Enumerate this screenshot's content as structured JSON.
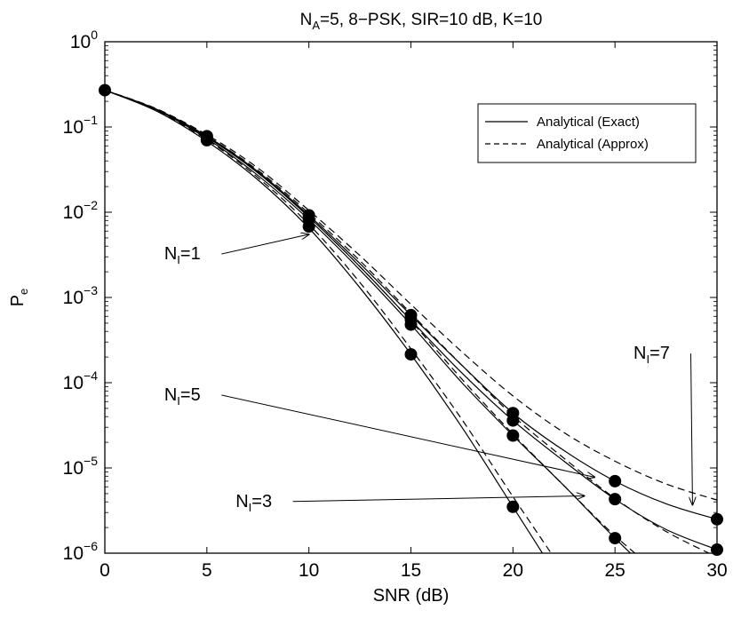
{
  "chart_data": {
    "type": "line",
    "title": {
      "prefix": "N",
      "sub": "A",
      "rest": "=5, 8−PSK, SIR=10 dB, K=10"
    },
    "xlabel": "SNR (dB)",
    "ylabel": {
      "main": "P",
      "sub": "e"
    },
    "xlim": [
      0,
      30
    ],
    "ylim": [
      1e-06,
      1
    ],
    "yscale": "log",
    "grid": false,
    "xticks": [
      0,
      5,
      10,
      15,
      20,
      25,
      30
    ],
    "yticks": [
      {
        "value": 1,
        "base": "10",
        "exp": "0"
      },
      {
        "value": 0.1,
        "base": "10",
        "exp": "−1"
      },
      {
        "value": 0.01,
        "base": "10",
        "exp": "−2"
      },
      {
        "value": 0.001,
        "base": "10",
        "exp": "−3"
      },
      {
        "value": 0.0001,
        "base": "10",
        "exp": "−4"
      },
      {
        "value": 1e-05,
        "base": "10",
        "exp": "−5"
      },
      {
        "value": 1e-06,
        "base": "10",
        "exp": "−6"
      }
    ],
    "legend": {
      "position": "top-right",
      "entries": [
        {
          "label": "Analytical (Exact)",
          "style": "solid"
        },
        {
          "label": "Analytical (Approx)",
          "style": "dashed"
        }
      ]
    },
    "x": [
      0,
      2.5,
      5,
      7.5,
      10,
      12.5,
      15,
      17.5,
      20,
      22.5,
      25,
      27.5,
      30
    ],
    "series": [
      {
        "key": "NI=1",
        "style": "solid",
        "values": [
          0.27,
          0.155,
          0.068,
          0.024,
          0.0065,
          0.0013,
          0.000215,
          3e-05,
          3.5e-06,
          4e-07,
          null,
          null,
          null
        ]
      },
      {
        "key": "NI=1",
        "style": "dashed",
        "values": [
          0.27,
          0.157,
          0.071,
          0.0255,
          0.0072,
          0.0015,
          0.00025,
          3.7e-05,
          4.6e-06,
          6e-07,
          null,
          null,
          null
        ]
      },
      {
        "key": "NI=3",
        "style": "solid",
        "values": [
          0.27,
          0.16,
          0.073,
          0.027,
          0.0082,
          0.0021,
          0.00048,
          0.0001,
          2.4e-05,
          6.2e-06,
          1.5e-06,
          4e-07,
          null
        ]
      },
      {
        "key": "NI=3",
        "style": "dashed",
        "values": [
          0.27,
          0.162,
          0.076,
          0.029,
          0.0088,
          0.0023,
          0.00053,
          0.00011,
          2.5e-05,
          6.2e-06,
          1.6e-06,
          5e-07,
          null
        ]
      },
      {
        "key": "NI=5",
        "style": "solid",
        "values": [
          0.27,
          0.162,
          0.076,
          0.029,
          0.0088,
          0.0023,
          0.00054,
          0.00013,
          3.6e-05,
          1.2e-05,
          4.3e-06,
          1.9e-06,
          1.1e-06
        ]
      },
      {
        "key": "NI=5",
        "style": "dashed",
        "values": [
          0.27,
          0.163,
          0.078,
          0.031,
          0.0097,
          0.0027,
          0.00065,
          0.00016,
          4.1e-05,
          1.3e-05,
          4.4e-06,
          1.8e-06,
          9e-07
        ]
      },
      {
        "key": "NI=7",
        "style": "solid",
        "values": [
          0.27,
          0.163,
          0.078,
          0.03,
          0.0092,
          0.0025,
          0.00062,
          0.00016,
          4.4e-05,
          1.6e-05,
          7e-06,
          3.8e-06,
          2.5e-06
        ]
      },
      {
        "key": "NI=7",
        "style": "dashed",
        "values": [
          0.27,
          0.165,
          0.081,
          0.033,
          0.0105,
          0.0031,
          0.00083,
          0.00023,
          7e-05,
          2.6e-05,
          1.2e-05,
          6.5e-06,
          4.2e-06
        ]
      }
    ],
    "markers": [
      {
        "x": 0,
        "y": 0.27
      },
      {
        "x": 5,
        "y": 0.078
      },
      {
        "x": 5,
        "y": 0.075
      },
      {
        "x": 5,
        "y": 0.07
      },
      {
        "x": 10,
        "y": 0.0092
      },
      {
        "x": 10,
        "y": 0.0082
      },
      {
        "x": 10,
        "y": 0.0068
      },
      {
        "x": 15,
        "y": 0.00062
      },
      {
        "x": 15,
        "y": 0.00055
      },
      {
        "x": 15,
        "y": 0.00048
      },
      {
        "x": 15,
        "y": 0.000215
      },
      {
        "x": 20,
        "y": 4.4e-05
      },
      {
        "x": 20,
        "y": 3.6e-05
      },
      {
        "x": 20,
        "y": 2.4e-05
      },
      {
        "x": 20,
        "y": 3.5e-06
      },
      {
        "x": 25,
        "y": 7e-06
      },
      {
        "x": 25,
        "y": 4.3e-06
      },
      {
        "x": 25,
        "y": 1.5e-06
      },
      {
        "x": 30,
        "y": 2.5e-06
      },
      {
        "x": 30,
        "y": 1.1e-06
      }
    ],
    "annotations": [
      {
        "main": "N",
        "sub": "I",
        "rest": "=1",
        "text_at": [
          3.8,
          0.0028
        ],
        "arrow_to": [
          10,
          0.0055
        ]
      },
      {
        "main": "N",
        "sub": "I",
        "rest": "=5",
        "text_at": [
          3.8,
          6.2e-05
        ],
        "arrow_to": [
          24,
          7.8e-06
        ]
      },
      {
        "main": "N",
        "sub": "I",
        "rest": "=3",
        "text_at": [
          7.3,
          3.5e-06
        ],
        "arrow_to": [
          23.5,
          4.7e-06
        ]
      },
      {
        "main": "N",
        "sub": "I",
        "rest": "=7",
        "text_at": [
          26.8,
          0.00019
        ],
        "arrow_to": [
          28.8,
          3.7e-06
        ]
      }
    ]
  }
}
